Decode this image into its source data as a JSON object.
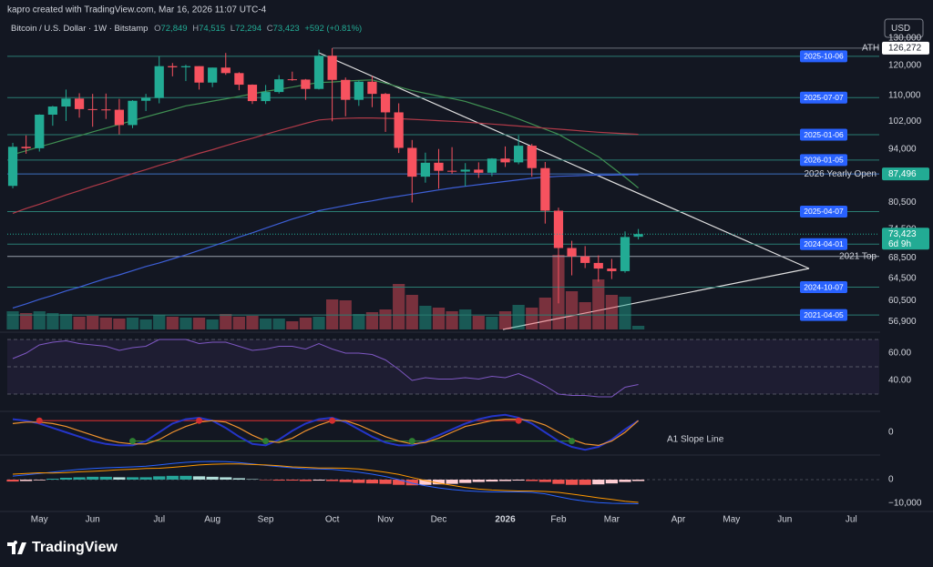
{
  "header": {
    "credit": "kapro created with TradingView.com, Mar 16, 2026 11:07 UTC-4"
  },
  "chart_data": {
    "type": "candlestick",
    "title": "Bitcoin / U.S. Dollar · 1W · Bitstamp",
    "ohlc": {
      "letters": [
        "O",
        "H",
        "L",
        "C"
      ],
      "values": [
        72849,
        74515,
        72294,
        73423
      ],
      "value_labels": [
        "72,849",
        "74,515",
        "72,294",
        "73,423"
      ]
    },
    "change": "+592 (+0.81%)",
    "currency": "USD",
    "up_color": "#22ab94",
    "down_color": "#f7525f",
    "open": [
      84500,
      94700,
      94300,
      104000,
      106500,
      109000,
      105700,
      105600,
      105500,
      100900,
      108300,
      109200,
      119800,
      119400,
      119800,
      114200,
      119300,
      117400,
      113500,
      108200,
      111100,
      115300,
      115200,
      112100,
      123500,
      115100,
      108600,
      114500,
      110500,
      104700,
      94400,
      86800,
      90400,
      88300,
      88100,
      88600,
      87800,
      91500,
      90500,
      95000,
      89000,
      78600,
      70500,
      68800,
      67500,
      66400,
      65900,
      72849
    ],
    "high": [
      95800,
      97900,
      104100,
      106700,
      111900,
      110700,
      110500,
      110600,
      108900,
      108500,
      110500,
      123200,
      120900,
      120300,
      119800,
      119300,
      124500,
      117700,
      113600,
      113400,
      116700,
      117900,
      115400,
      125700,
      126272,
      115900,
      114900,
      116400,
      110800,
      107500,
      96600,
      93100,
      94100,
      94600,
      90300,
      90500,
      91600,
      94800,
      97900,
      95500,
      90600,
      79300,
      72000,
      70900,
      69000,
      68300,
      74000,
      74515
    ],
    "low": [
      83900,
      92800,
      93400,
      100700,
      102100,
      103100,
      100400,
      102700,
      98200,
      100000,
      105100,
      107500,
      116300,
      114700,
      111900,
      112700,
      116800,
      111700,
      107300,
      107300,
      110600,
      114800,
      108600,
      111900,
      102000,
      103500,
      106700,
      106300,
      98900,
      93000,
      80500,
      85300,
      83800,
      87500,
      84400,
      86500,
      86900,
      89300,
      90000,
      86800,
      75700,
      60000,
      65100,
      66500,
      63900,
      64400,
      65600,
      72294
    ],
    "close": [
      94700,
      94300,
      104000,
      106500,
      109000,
      105700,
      105600,
      105500,
      100900,
      108300,
      109200,
      119800,
      119400,
      119800,
      114200,
      119300,
      117400,
      113500,
      108200,
      111100,
      115300,
      115200,
      112100,
      123500,
      115100,
      108600,
      114500,
      110500,
      104700,
      94400,
      86800,
      90400,
      88300,
      88100,
      88600,
      87800,
      91500,
      90500,
      95000,
      89000,
      78600,
      70500,
      68800,
      67500,
      66400,
      65900,
      72800,
      73423
    ],
    "volume": [
      6000,
      5400,
      6000,
      5400,
      5100,
      4200,
      4500,
      3900,
      3600,
      3900,
      3300,
      4800,
      4200,
      3900,
      3900,
      3300,
      5100,
      4200,
      4500,
      3600,
      3600,
      2700,
      3900,
      4200,
      9900,
      9600,
      5100,
      5700,
      6600,
      15000,
      11400,
      7800,
      7200,
      6000,
      6600,
      4500,
      4200,
      6000,
      8100,
      7200,
      10500,
      24600,
      12600,
      9000,
      16500,
      11400,
      10800,
      1200
    ],
    "moving_averages": [
      {
        "color": "#3f8f52",
        "values": [
          92600,
          93600,
          94700,
          95700,
          96800,
          97800,
          98900,
          100000,
          101100,
          102200,
          103300,
          104400,
          105500,
          106700,
          107400,
          108200,
          108900,
          109700,
          110500,
          111300,
          112000,
          112700,
          113500,
          114200,
          114400,
          114700,
          114900,
          115100,
          114000,
          112800,
          111600,
          110700,
          109800,
          109000,
          108100,
          106800,
          105500,
          104200,
          102700,
          101200,
          99700,
          98200,
          96100,
          94000,
          92000,
          89300,
          86700,
          84000
        ]
      },
      {
        "color": "#b03a48",
        "values": [
          78000,
          79100,
          80100,
          81200,
          82300,
          83300,
          84400,
          85400,
          86500,
          87600,
          88600,
          89700,
          90700,
          91800,
          92900,
          93900,
          95000,
          96100,
          97100,
          98200,
          99300,
          100300,
          101400,
          102400,
          102700,
          102900,
          103000,
          103000,
          102900,
          102800,
          102600,
          102400,
          102200,
          102000,
          101800,
          101500,
          101200,
          100900,
          100600,
          100300,
          100000,
          99700,
          99400,
          99100,
          98800,
          98600,
          98400,
          98200
        ]
      },
      {
        "color": "#3d5fd6",
        "values": [
          59200,
          59900,
          60700,
          61400,
          62200,
          62900,
          63700,
          64500,
          65200,
          66000,
          66800,
          67500,
          68300,
          69100,
          70000,
          70900,
          71800,
          72800,
          73700,
          74700,
          75700,
          76700,
          77600,
          78600,
          79200,
          79800,
          80400,
          80900,
          81500,
          82000,
          82500,
          83000,
          83500,
          84000,
          84400,
          84800,
          85200,
          85600,
          86000,
          86400,
          86700,
          86900,
          87000,
          87100,
          87200,
          87200,
          87300,
          87300
        ]
      }
    ],
    "xlim": [
      -0.55,
      65.1
    ],
    "xticks": [
      {
        "value": 2,
        "label": "May"
      },
      {
        "value": 6,
        "label": "Jun"
      },
      {
        "value": 11,
        "label": "Jul"
      },
      {
        "value": 15,
        "label": "Aug"
      },
      {
        "value": 19,
        "label": "Sep"
      },
      {
        "value": 24,
        "label": "Oct"
      },
      {
        "value": 28,
        "label": "Nov"
      },
      {
        "value": 32,
        "label": "Dec"
      },
      {
        "value": 37,
        "label": "2026"
      },
      {
        "value": 41,
        "label": "Feb"
      },
      {
        "value": 45,
        "label": "Mar"
      },
      {
        "value": 50,
        "label": "Apr"
      },
      {
        "value": 54,
        "label": "May"
      },
      {
        "value": 58,
        "label": "Jun"
      },
      {
        "value": 63,
        "label": "Jul"
      }
    ],
    "ylim": [
      55600,
      132400
    ],
    "log": true,
    "yticks": [
      {
        "value": 130000,
        "label": "130,000"
      },
      {
        "value": 120000,
        "label": "120,000"
      },
      {
        "value": 110000,
        "label": "110,000"
      },
      {
        "value": 102000,
        "label": "102,000"
      },
      {
        "value": 94000,
        "label": "94,000"
      },
      {
        "value": 80500,
        "label": "80,500"
      },
      {
        "value": 74500,
        "label": "74,500"
      },
      {
        "value": 68500,
        "label": "68,500"
      },
      {
        "value": 64500,
        "label": "64,500"
      },
      {
        "value": 60500,
        "label": "60,500"
      },
      {
        "value": 56900,
        "label": "56,900"
      }
    ],
    "ath": {
      "label": "ATH",
      "value": 126272,
      "value_label": "126,272"
    },
    "levels": [
      {
        "label": "2025-10-06",
        "value": 123300,
        "style": "box",
        "color": "#2a7d72"
      },
      {
        "label": "2025-07-07",
        "value": 109300,
        "style": "box",
        "color": "#2a7d72"
      },
      {
        "label": "2025-01-06",
        "value": 98100,
        "style": "box",
        "color": "#2a7d72"
      },
      {
        "label": "2026-01-05",
        "value": 91100,
        "style": "box",
        "color": "#2a7d72"
      },
      {
        "label": "2026 Yearly Open",
        "value": 87496,
        "value_label": "87,496",
        "style": "text",
        "color": "#3d6fbf"
      },
      {
        "label": "2025-04-07",
        "value": 78400,
        "style": "box",
        "color": "#2a7d72"
      },
      {
        "label": "2024-04-01",
        "value": 71300,
        "style": "box",
        "color": "#2a7d72"
      },
      {
        "label": "2021 Top",
        "value": 68800,
        "style": "text",
        "color": "#9aa0ab"
      },
      {
        "label": "2024-10-07",
        "value": 62900,
        "style": "box",
        "color": "#2a7d72"
      },
      {
        "label": "2021-04-05",
        "value": 58000,
        "style": "box",
        "color": "#2a7d72"
      }
    ],
    "last_price": {
      "value": 73423,
      "value_label": "73,423",
      "countdown": "6d 9h",
      "color": "#22ab94"
    },
    "rsi": {
      "color": "#7e57c2",
      "ylim": [
        18.7,
        73.3
      ],
      "yticks": [
        {
          "value": 60,
          "label": "60.00"
        },
        {
          "value": 40,
          "label": "40.00"
        }
      ],
      "bands": [
        70,
        50,
        30
      ],
      "values": [
        56,
        60,
        66,
        68,
        69,
        67,
        66,
        65,
        62,
        64,
        65,
        70,
        70,
        70,
        67,
        68,
        68,
        65,
        62,
        63,
        65,
        65,
        63,
        67,
        63,
        60,
        60,
        59,
        55,
        48,
        40,
        42,
        41,
        41,
        42,
        41,
        43,
        42,
        45,
        41,
        36,
        30,
        29,
        29,
        28,
        28,
        35,
        37
      ]
    },
    "oscillator": {
      "ylim": [
        -1.375,
        1.25
      ],
      "yticks": [
        0
      ],
      "label": "A1 Slope Line",
      "label_color": "#f0922e",
      "series": [
        {
          "color": "#2435c8",
          "values": [
            0.9,
            0.8,
            0.6,
            0.3,
            0.0,
            -0.3,
            -0.6,
            -0.8,
            -0.9,
            -0.9,
            -0.6,
            0.0,
            0.6,
            0.9,
            1.0,
            0.8,
            0.3,
            -0.3,
            -0.8,
            -0.9,
            -0.5,
            0.1,
            0.6,
            0.9,
            1.0,
            0.7,
            0.2,
            -0.3,
            -0.7,
            -0.9,
            -0.9,
            -0.6,
            -0.2,
            0.2,
            0.6,
            0.9,
            1.1,
            1.2,
            1.0,
            0.6,
            0.0,
            -0.6,
            -1.0,
            -1.2,
            -1.0,
            -0.5,
            0.2,
            0.8
          ]
        },
        {
          "color": "#f0922e",
          "values": [
            0.6,
            0.7,
            0.7,
            0.6,
            0.4,
            0.1,
            -0.2,
            -0.5,
            -0.7,
            -0.8,
            -0.8,
            -0.5,
            0.0,
            0.4,
            0.7,
            0.8,
            0.7,
            0.3,
            -0.2,
            -0.6,
            -0.7,
            -0.4,
            0.1,
            0.5,
            0.8,
            0.8,
            0.5,
            0.1,
            -0.3,
            -0.6,
            -0.8,
            -0.7,
            -0.4,
            0.0,
            0.4,
            0.6,
            0.8,
            0.9,
            0.9,
            0.8,
            0.5,
            0.0,
            -0.5,
            -0.8,
            -0.9,
            -0.6,
            0.0,
            0.8
          ]
        }
      ],
      "dots": [
        {
          "color": "#d32f2f",
          "values": [
            null,
            null,
            0.8,
            null,
            null,
            null,
            null,
            null,
            null,
            null,
            null,
            null,
            null,
            null,
            0.8,
            null,
            null,
            null,
            null,
            null,
            null,
            null,
            null,
            null,
            0.8,
            null,
            null,
            null,
            null,
            null,
            null,
            null,
            null,
            null,
            null,
            null,
            null,
            null,
            0.8,
            null,
            null,
            null,
            null,
            null,
            null,
            null,
            null,
            null
          ]
        },
        {
          "color": "#2e7d32",
          "values": [
            null,
            null,
            null,
            null,
            null,
            null,
            null,
            null,
            null,
            -0.6,
            null,
            null,
            null,
            null,
            null,
            null,
            null,
            null,
            null,
            -0.6,
            null,
            null,
            null,
            null,
            null,
            null,
            null,
            null,
            null,
            null,
            -0.6,
            null,
            null,
            null,
            null,
            null,
            null,
            null,
            null,
            null,
            null,
            null,
            -0.6,
            null,
            null,
            null,
            null,
            null
          ]
        }
      ]
    },
    "macd": {
      "ylim": [
        -13460,
        9230
      ],
      "yticks": [
        0,
        {
          "value": -10000,
          "label": "−10,000"
        }
      ],
      "hist_colors": [
        "#26a69a",
        "#b2dfdb",
        "#ef5350",
        "#ffcdd2"
      ],
      "histogram": [
        -800,
        -600,
        -300,
        400,
        800,
        1000,
        1200,
        1200,
        1000,
        1000,
        1000,
        1400,
        1600,
        1600,
        1400,
        1200,
        1000,
        600,
        200,
        -200,
        -400,
        -400,
        -600,
        -400,
        -600,
        -1000,
        -1400,
        -1600,
        -1800,
        -2200,
        -2400,
        -2200,
        -2000,
        -1800,
        -1400,
        -1000,
        -800,
        -600,
        -400,
        -600,
        -1000,
        -1800,
        -2200,
        -2200,
        -2000,
        -1600,
        -1000,
        -600
      ],
      "lines": [
        {
          "color": "#2962ff",
          "values": [
            1500,
            2000,
            2600,
            3200,
            3800,
            4300,
            4700,
            5000,
            5200,
            5400,
            5700,
            6200,
            6800,
            7300,
            7600,
            7700,
            7600,
            7200,
            6600,
            6000,
            5500,
            5000,
            4600,
            4500,
            4300,
            3800,
            3100,
            2300,
            1300,
            0,
            -1500,
            -2600,
            -3500,
            -4200,
            -4700,
            -5000,
            -5200,
            -5200,
            -5200,
            -5400,
            -6000,
            -7200,
            -8300,
            -9100,
            -9700,
            -10000,
            -10100,
            -10200
          ]
        },
        {
          "color": "#ff9800",
          "values": [
            2300,
            2600,
            2900,
            2800,
            3000,
            3300,
            3500,
            3800,
            4200,
            4400,
            4700,
            4800,
            5200,
            5700,
            6200,
            6500,
            6600,
            6600,
            6400,
            6200,
            5900,
            5400,
            5200,
            4900,
            4900,
            4800,
            4500,
            3900,
            3100,
            2200,
            900,
            -400,
            -1500,
            -2400,
            -3300,
            -4000,
            -4400,
            -4600,
            -4800,
            -4800,
            -5000,
            -5400,
            -6100,
            -6900,
            -7700,
            -8400,
            -9100,
            -9600
          ]
        }
      ]
    }
  },
  "footer": {
    "logo": "TradingView"
  }
}
